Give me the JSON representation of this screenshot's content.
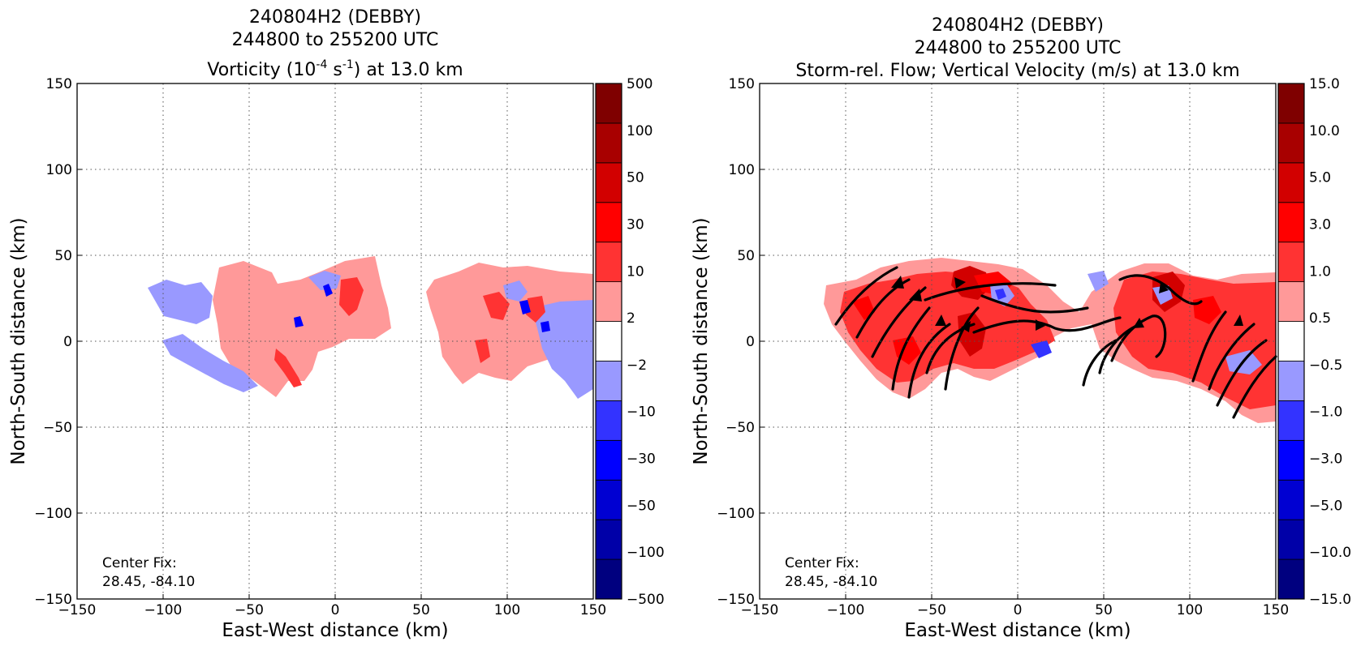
{
  "panels": [
    {
      "title_line1": "240804H2 (DEBBY)",
      "title_line2": "244800 to 255200 UTC",
      "title_line3_pre": "Vorticity (10",
      "title_line3_sup1": "-4",
      "title_line3_mid": " s",
      "title_line3_sup2": "-1",
      "title_line3_post": ") at 13.0 km",
      "note_line1": "Center Fix:",
      "note_line2": "28.45, -84.10",
      "xlabel": "East-West distance (km)",
      "ylabel": "North-South distance (km)"
    },
    {
      "title_line1": "240804H2 (DEBBY)",
      "title_line2": "244800 to 255200 UTC",
      "title_line3": "Storm-rel. Flow; Vertical Velocity (m/s) at 13.0 km",
      "note_line1": "Center Fix:",
      "note_line2": "28.45, -84.10",
      "xlabel": "East-West distance (km)",
      "ylabel": "North-South distance (km)"
    }
  ],
  "chart_data": [
    {
      "type": "heatmap",
      "variable": "Vorticity",
      "level": "13.0 km",
      "xlim": [
        -150,
        150
      ],
      "ylim": [
        -150,
        150
      ],
      "x_ticks": [
        "−150",
        "−100",
        "−50",
        "0",
        "50",
        "100",
        "150"
      ],
      "y_ticks": [
        "−150",
        "−100",
        "−50",
        "0",
        "50",
        "100",
        "150"
      ],
      "grid": true,
      "colorbar_labels": [
        "−500",
        "−100",
        "−50",
        "−30",
        "−10",
        "−2",
        "2",
        "10",
        "30",
        "50",
        "100",
        "500"
      ],
      "colorbar_colors": [
        "#00007f",
        "#0000a8",
        "#0000d2",
        "#0000ff",
        "#3333ff",
        "#9999ff",
        "#ffffff",
        "#ff9999",
        "#ff3333",
        "#ff0000",
        "#d20000",
        "#a80000",
        "#7f0000"
      ]
    },
    {
      "type": "heatmap",
      "variable": "Vertical Velocity (m/s) with storm-relative streamlines",
      "level": "13.0 km",
      "xlim": [
        -150,
        150
      ],
      "ylim": [
        -150,
        150
      ],
      "x_ticks": [
        "−150",
        "−100",
        "−50",
        "0",
        "50",
        "100",
        "150"
      ],
      "y_ticks": [
        "−150",
        "−100",
        "−50",
        "0",
        "50",
        "100",
        "150"
      ],
      "grid": true,
      "colorbar_labels": [
        "−15.0",
        "−10.0",
        "−5.0",
        "−3.0",
        "−1.0",
        "−0.5",
        "0.5",
        "1.0",
        "3.0",
        "5.0",
        "10.0",
        "15.0"
      ],
      "colorbar_colors": [
        "#00007f",
        "#0000a8",
        "#0000d2",
        "#0000ff",
        "#3333ff",
        "#9999ff",
        "#ffffff",
        "#ff9999",
        "#ff3333",
        "#ff0000",
        "#d20000",
        "#a80000",
        "#7f0000"
      ]
    }
  ]
}
